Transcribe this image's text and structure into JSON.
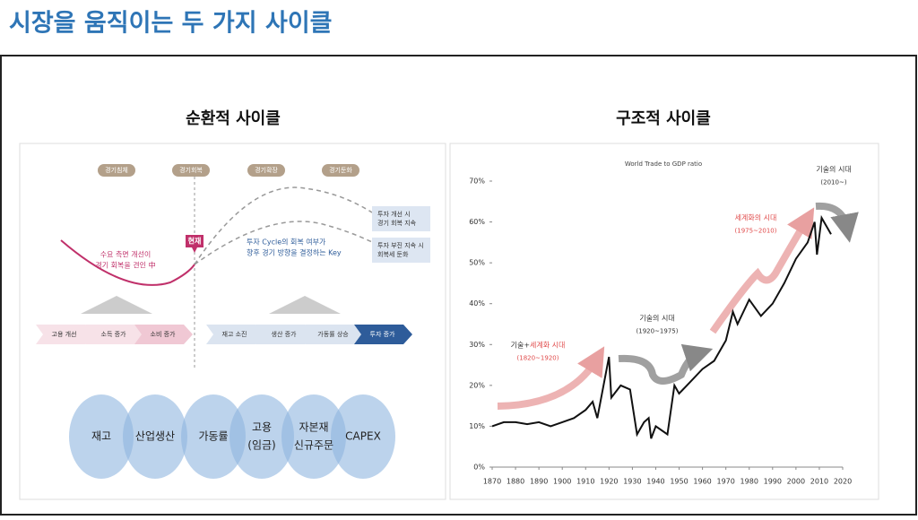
{
  "header": {
    "title": "시장을 움직이는 두 가지 사이클"
  },
  "cyclical": {
    "title": "순환적 사이클",
    "phases": [
      "경기침체",
      "경기회복",
      "경기확장",
      "경기둔화"
    ],
    "current": "현재",
    "note_left": [
      "수요 측면 개선이",
      "경기 회복을 견인 中"
    ],
    "note_right": [
      "투자 Cycle의 회복 여부가",
      "향후 경기 방향을 결정하는 Key"
    ],
    "scenarios": [
      [
        "투자 개선 시",
        "경기 회복 지속"
      ],
      [
        "투자 부진 지속 시",
        "회복세 둔화"
      ]
    ],
    "chain_demand": [
      "고용 개선",
      "소득 증가",
      "소비 증가"
    ],
    "chain_supply": [
      "재고 소진",
      "생산 증가",
      "가동률 상승",
      "투자 증가"
    ],
    "indicators": [
      [
        "재고"
      ],
      [
        "산업생산"
      ],
      [
        "가동률"
      ],
      [
        "고용",
        "(임금)"
      ],
      [
        "자본재",
        "신규주문"
      ],
      [
        "CAPEX"
      ]
    ]
  },
  "structural": {
    "title": "구조적 사이클",
    "chart": {
      "type": "line",
      "title": "World Trade to GDP ratio",
      "color": "#111111",
      "x": [
        1870,
        1875,
        1880,
        1885,
        1890,
        1895,
        1900,
        1905,
        1910,
        1913,
        1915,
        1918,
        1920,
        1921,
        1925,
        1929,
        1932,
        1935,
        1937,
        1938,
        1940,
        1945,
        1948,
        1950,
        1955,
        1960,
        1965,
        1970,
        1973,
        1975,
        1980,
        1985,
        1990,
        1995,
        2000,
        2005,
        2008,
        2009,
        2011,
        2015
      ],
      "values": [
        10,
        11,
        11,
        10.5,
        11,
        10,
        11,
        12,
        14,
        16,
        12,
        21,
        27,
        17,
        20,
        19,
        8,
        11,
        12,
        7,
        10,
        8,
        20,
        18,
        21,
        24,
        26,
        31,
        38,
        35,
        41,
        37,
        40,
        45,
        51,
        55,
        60,
        52,
        61,
        57
      ],
      "xlim": [
        1870,
        2020
      ],
      "xticks": [
        1870,
        1880,
        1890,
        1900,
        1910,
        1920,
        1930,
        1940,
        1950,
        1960,
        1970,
        1980,
        1990,
        2000,
        2010,
        2020
      ],
      "ylim": [
        0,
        70
      ],
      "yticks": [
        {
          "value": 0,
          "label": "0%"
        },
        {
          "value": 10,
          "label": "10%"
        },
        {
          "value": 20,
          "label": "20%"
        },
        {
          "value": 30,
          "label": "30%"
        },
        {
          "value": 40,
          "label": "40%"
        },
        {
          "value": 50,
          "label": "50%"
        },
        {
          "value": 60,
          "label": "60%"
        },
        {
          "value": 70,
          "label": "70%"
        }
      ],
      "annotations": [
        {
          "lines": [
            [
              "기술+",
              "세계화 시대"
            ],
            [
              "(1820~1920)"
            ]
          ],
          "colors": [
            [
              "#333333",
              "#e04a4a"
            ],
            [
              "#e04a4a"
            ]
          ]
        },
        {
          "lines": [
            [
              "기술의 시대"
            ],
            [
              "(1920~1975)"
            ]
          ],
          "colors": [
            [
              "#333333"
            ],
            [
              "#333333"
            ]
          ]
        },
        {
          "lines": [
            [
              "세계화의 시대"
            ],
            [
              "(1975~2010)"
            ]
          ],
          "colors": [
            [
              "#e04a4a"
            ],
            [
              "#e04a4a"
            ]
          ]
        },
        {
          "lines": [
            [
              "기술의 시대"
            ],
            [
              "(2010~)"
            ]
          ],
          "colors": [
            [
              "#333333"
            ],
            [
              "#333333"
            ]
          ]
        }
      ]
    }
  }
}
